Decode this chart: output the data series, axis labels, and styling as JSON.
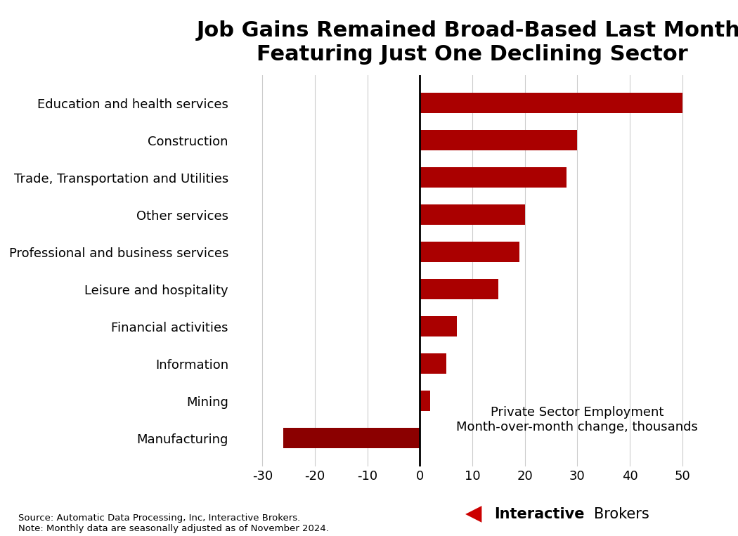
{
  "title": "Job Gains Remained Broad-Based Last Month,\nFeaturing Just One Declining Sector",
  "categories": [
    "Education and health services",
    "Construction",
    "Trade, Transportation and Utilities",
    "Other services",
    "Professional and business services",
    "Leisure and hospitality",
    "Financial activities",
    "Information",
    "Mining",
    "Manufacturing"
  ],
  "values": [
    50,
    30,
    28,
    20,
    19,
    15,
    7,
    5,
    2,
    -26
  ],
  "bar_color_positive": "#AA0000",
  "bar_color_negative": "#8B0000",
  "axis_label": "Private Sector Employment\nMonth-over-month change, thousands",
  "xlim": [
    -35,
    55
  ],
  "xticks": [
    -30,
    -20,
    -10,
    0,
    10,
    20,
    30,
    40,
    50
  ],
  "source_text": "Source: Automatic Data Processing, Inc, Interactive Brokers.\nNote: Monthly data are seasonally adjusted as of November 2024.",
  "title_fontsize": 22,
  "label_fontsize": 13,
  "tick_fontsize": 13,
  "annotation_fontsize": 13,
  "background_color": "#FFFFFF"
}
